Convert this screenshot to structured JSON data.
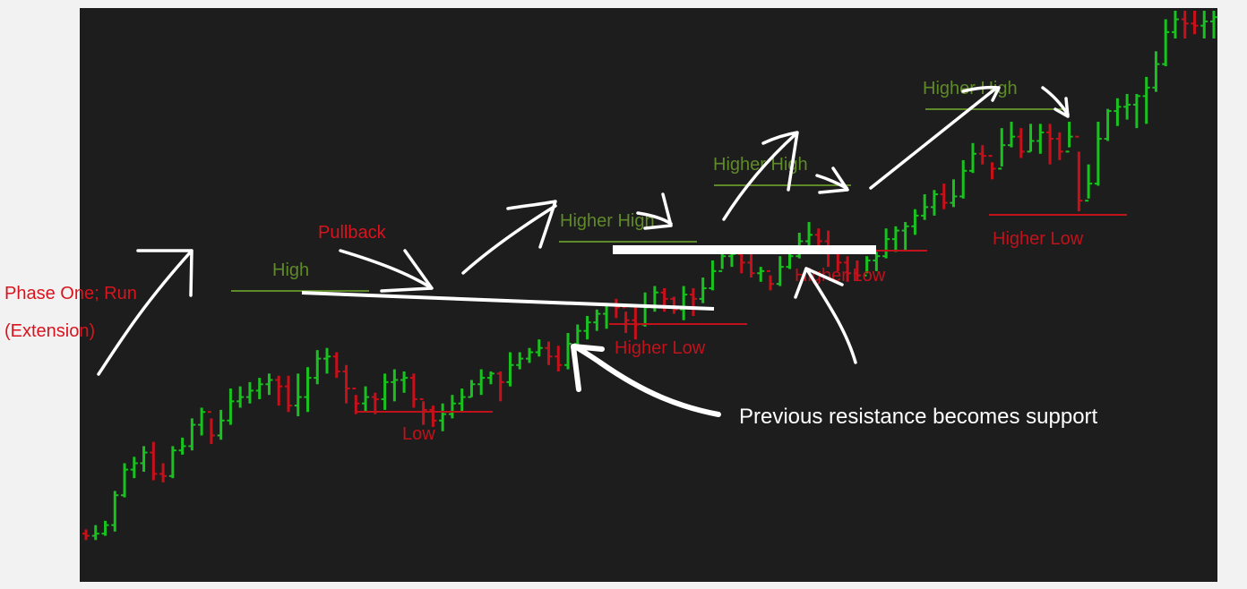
{
  "chart_data": {
    "type": "ohlc",
    "colors": {
      "background": "#1d1d1d",
      "up": "#19c21f",
      "down": "#c8101b",
      "level_green": "#5f8a2a",
      "level_red": "#c0121b",
      "annotation": "#ffffff",
      "side_note": "#d9141e"
    },
    "grid": false,
    "axes_visible": false,
    "price_range": [
      0,
      100
    ],
    "bars": [
      [
        10,
        9,
        12,
        7
      ],
      [
        9,
        10,
        14,
        7
      ],
      [
        10,
        14,
        16,
        9
      ],
      [
        14,
        28,
        30,
        11
      ],
      [
        28,
        40,
        43,
        27
      ],
      [
        40,
        43,
        46,
        36
      ],
      [
        43,
        48,
        51,
        39
      ],
      [
        48,
        38,
        53,
        35
      ],
      [
        38,
        37,
        43,
        34
      ],
      [
        37,
        49,
        51,
        36
      ],
      [
        49,
        51,
        55,
        47
      ],
      [
        51,
        61,
        64,
        49
      ],
      [
        61,
        67,
        69,
        56
      ],
      [
        67,
        56,
        64,
        52
      ],
      [
        56,
        63,
        68,
        54
      ],
      [
        63,
        72,
        78,
        61
      ],
      [
        72,
        74,
        79,
        69
      ],
      [
        74,
        77,
        81,
        71
      ],
      [
        77,
        80,
        83,
        73
      ],
      [
        80,
        82,
        85,
        75
      ],
      [
        82,
        79,
        84,
        70
      ],
      [
        79,
        70,
        84,
        67
      ],
      [
        70,
        74,
        85,
        65
      ],
      [
        74,
        83,
        88,
        67
      ],
      [
        83,
        92,
        96,
        80
      ],
      [
        92,
        93,
        97,
        85
      ],
      [
        93,
        86,
        95,
        83
      ],
      [
        86,
        78,
        89,
        71
      ],
      [
        78,
        71,
        75,
        66
      ],
      [
        71,
        74,
        79,
        67
      ],
      [
        74,
        73,
        76,
        66
      ],
      [
        73,
        81,
        85,
        68
      ],
      [
        81,
        82,
        87,
        72
      ],
      [
        82,
        83,
        86,
        76
      ],
      [
        83,
        73,
        85,
        69
      ],
      [
        73,
        68,
        72,
        61
      ],
      [
        68,
        63,
        70,
        60
      ],
      [
        63,
        66,
        71,
        58
      ],
      [
        66,
        71,
        75,
        64
      ],
      [
        71,
        74,
        78,
        67
      ],
      [
        74,
        80,
        82,
        74
      ],
      [
        80,
        83,
        87,
        75
      ],
      [
        83,
        85,
        86,
        80
      ],
      [
        85,
        81,
        86,
        72
      ],
      [
        81,
        89,
        95,
        79
      ],
      [
        89,
        92,
        95,
        87
      ],
      [
        92,
        95,
        97,
        90
      ],
      [
        95,
        97,
        101,
        93
      ],
      [
        97,
        93,
        100,
        89
      ],
      [
        93,
        89,
        98,
        86
      ],
      [
        89,
        99,
        104,
        87
      ],
      [
        99,
        105,
        108,
        96
      ],
      [
        105,
        109,
        112,
        101
      ],
      [
        109,
        113,
        115,
        105
      ],
      [
        113,
        117,
        117,
        106
      ],
      [
        117,
        116,
        120,
        111
      ],
      [
        116,
        110,
        114,
        104
      ],
      [
        110,
        108,
        116,
        101
      ],
      [
        108,
        116,
        123,
        107
      ],
      [
        116,
        123,
        126,
        114
      ],
      [
        123,
        120,
        125,
        114
      ],
      [
        120,
        115,
        121,
        113
      ],
      [
        115,
        122,
        126,
        110
      ],
      [
        122,
        120,
        125,
        112
      ],
      [
        120,
        125,
        130,
        118
      ],
      [
        125,
        133,
        138,
        124
      ],
      [
        133,
        140,
        143,
        134
      ],
      [
        140,
        141,
        145,
        135
      ],
      [
        141,
        137,
        144,
        132
      ],
      [
        137,
        132,
        142,
        130
      ],
      [
        132,
        133,
        135,
        128
      ],
      [
        133,
        127,
        131,
        124
      ],
      [
        127,
        135,
        140,
        126
      ],
      [
        135,
        140,
        143,
        134
      ],
      [
        140,
        147,
        151,
        139
      ],
      [
        147,
        150,
        156,
        144
      ],
      [
        150,
        147,
        153,
        141
      ],
      [
        147,
        143,
        152,
        135
      ],
      [
        143,
        137,
        145,
        133
      ],
      [
        137,
        132,
        140,
        128
      ],
      [
        132,
        131,
        138,
        129
      ],
      [
        131,
        138,
        140,
        132
      ],
      [
        138,
        140,
        142,
        133
      ],
      [
        140,
        148,
        153,
        139
      ],
      [
        148,
        152,
        154,
        142
      ],
      [
        152,
        154,
        156,
        143
      ],
      [
        154,
        159,
        162,
        150
      ],
      [
        159,
        163,
        169,
        157
      ],
      [
        163,
        169,
        171,
        159
      ],
      [
        169,
        165,
        174,
        162
      ],
      [
        165,
        168,
        176,
        163
      ],
      [
        168,
        180,
        185,
        167
      ],
      [
        180,
        188,
        193,
        179
      ],
      [
        188,
        187,
        192,
        183
      ],
      [
        187,
        181,
        184,
        176
      ],
      [
        181,
        192,
        200,
        182
      ],
      [
        192,
        196,
        203,
        191
      ],
      [
        196,
        189,
        200,
        186
      ],
      [
        189,
        194,
        202,
        189
      ],
      [
        194,
        198,
        202,
        188
      ],
      [
        198,
        195,
        202,
        183
      ],
      [
        195,
        189,
        198,
        185
      ],
      [
        189,
        196,
        203,
        191
      ],
      [
        196,
        166,
        189,
        161
      ],
      [
        166,
        174,
        183,
        167
      ],
      [
        174,
        195,
        203,
        173
      ],
      [
        195,
        208,
        209,
        194
      ],
      [
        208,
        210,
        214,
        201
      ],
      [
        210,
        211,
        216,
        204
      ],
      [
        211,
        215,
        216,
        200
      ],
      [
        215,
        219,
        224,
        202
      ],
      [
        219,
        230,
        236,
        217
      ],
      [
        230,
        245,
        251,
        229
      ],
      [
        245,
        251,
        255,
        242
      ],
      [
        251,
        249,
        255,
        242
      ],
      [
        249,
        248,
        255,
        244
      ],
      [
        248,
        250,
        255,
        242
      ],
      [
        250,
        252,
        255,
        242
      ]
    ],
    "levels": [
      {
        "label": "High",
        "color": "green"
      },
      {
        "label": "Low",
        "color": "red"
      },
      {
        "label": "Higher High",
        "color": "green"
      },
      {
        "label": "Higher Low",
        "color": "red"
      },
      {
        "label": "Higher High",
        "color": "green"
      },
      {
        "label": "Higher Low",
        "color": "red"
      },
      {
        "label": "Higher High",
        "color": "green"
      },
      {
        "label": "Higher Low",
        "color": "red"
      }
    ],
    "annotations": {
      "phase_line1": "Phase One; Run",
      "phase_line2": "(Extension)",
      "pullback": "Pullback",
      "support_note": "Previous resistance becomes support"
    }
  }
}
